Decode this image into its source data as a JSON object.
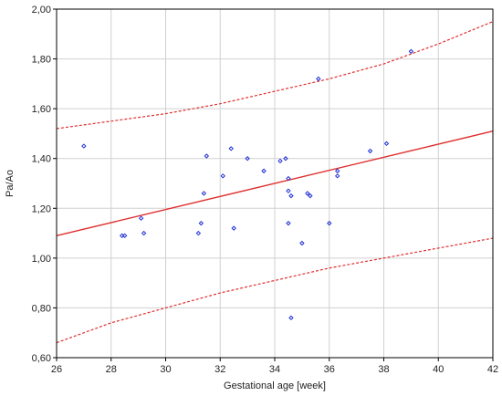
{
  "chart_data": {
    "type": "scatter",
    "title": "",
    "xlabel": "Gestational age [week]",
    "ylabel": "Pa/Ao",
    "xlim": [
      26,
      42
    ],
    "ylim": [
      0.6,
      2.0
    ],
    "x_ticks": [
      26,
      28,
      30,
      32,
      34,
      36,
      38,
      40,
      42
    ],
    "x_tick_labels": [
      "26",
      "28",
      "30",
      "32",
      "34",
      "36",
      "38",
      "40",
      "42"
    ],
    "y_ticks": [
      0.6,
      0.8,
      1.0,
      1.2,
      1.4,
      1.6,
      1.8,
      2.0
    ],
    "y_tick_labels": [
      "0,60",
      "0,80",
      "1,00",
      "1,20",
      "1,40",
      "1,60",
      "1,80",
      "2,00"
    ],
    "grid": true,
    "colors": {
      "points": "#1f2fd6",
      "regression": "#e03030",
      "confidence": "#e03030"
    },
    "points": [
      {
        "x": 27.0,
        "y": 1.45
      },
      {
        "x": 28.4,
        "y": 1.09
      },
      {
        "x": 28.5,
        "y": 1.09
      },
      {
        "x": 29.1,
        "y": 1.16
      },
      {
        "x": 29.2,
        "y": 1.1
      },
      {
        "x": 31.2,
        "y": 1.1
      },
      {
        "x": 31.3,
        "y": 1.14
      },
      {
        "x": 31.4,
        "y": 1.26
      },
      {
        "x": 31.5,
        "y": 1.41
      },
      {
        "x": 32.1,
        "y": 1.33
      },
      {
        "x": 32.4,
        "y": 1.44
      },
      {
        "x": 32.5,
        "y": 1.12
      },
      {
        "x": 33.0,
        "y": 1.4
      },
      {
        "x": 33.6,
        "y": 1.35
      },
      {
        "x": 34.2,
        "y": 1.39
      },
      {
        "x": 34.4,
        "y": 1.4
      },
      {
        "x": 34.5,
        "y": 1.32
      },
      {
        "x": 34.5,
        "y": 1.27
      },
      {
        "x": 34.5,
        "y": 1.14
      },
      {
        "x": 34.6,
        "y": 1.25
      },
      {
        "x": 34.6,
        "y": 0.76
      },
      {
        "x": 35.0,
        "y": 1.06
      },
      {
        "x": 35.2,
        "y": 1.26
      },
      {
        "x": 35.3,
        "y": 1.25
      },
      {
        "x": 35.6,
        "y": 1.72
      },
      {
        "x": 36.0,
        "y": 1.14
      },
      {
        "x": 36.3,
        "y": 1.35
      },
      {
        "x": 36.3,
        "y": 1.33
      },
      {
        "x": 37.5,
        "y": 1.43
      },
      {
        "x": 38.1,
        "y": 1.46
      },
      {
        "x": 39.0,
        "y": 1.83
      }
    ],
    "regression": {
      "x": [
        26,
        42
      ],
      "y": [
        1.09,
        1.51
      ]
    },
    "confidence_upper": {
      "x": [
        26,
        28,
        30,
        32,
        34,
        36,
        38,
        40,
        42
      ],
      "y": [
        1.52,
        1.55,
        1.58,
        1.62,
        1.67,
        1.72,
        1.78,
        1.86,
        1.95
      ]
    },
    "confidence_lower": {
      "x": [
        26,
        28,
        30,
        32,
        34,
        36,
        38,
        40,
        42
      ],
      "y": [
        0.66,
        0.74,
        0.8,
        0.86,
        0.91,
        0.96,
        1.0,
        1.04,
        1.08
      ]
    }
  }
}
